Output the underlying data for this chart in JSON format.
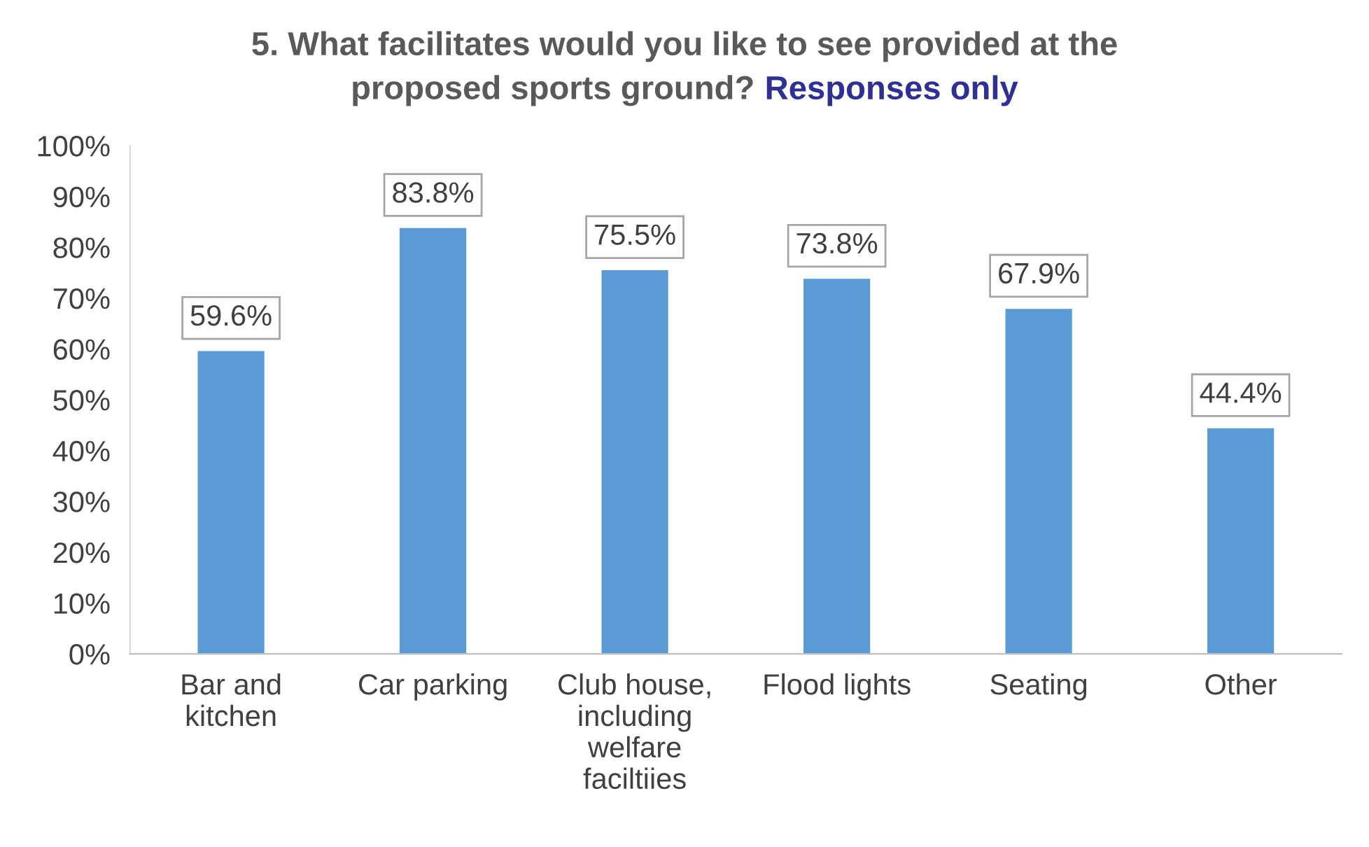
{
  "chart_data": {
    "type": "bar",
    "title": "5. What facilitates would you like to see provided at the proposed sports ground?",
    "subtitle": "Responses only",
    "categories": [
      "Bar and\nkitchen",
      "Car parking",
      "Club house,\nincluding\nwelfare\nfaciltiies",
      "Flood lights",
      "Seating",
      "Other"
    ],
    "values": [
      59.6,
      83.8,
      75.5,
      73.8,
      67.9,
      44.4
    ],
    "value_labels": [
      "59.6%",
      "83.8%",
      "75.5%",
      "73.8%",
      "67.9%",
      "44.4%"
    ],
    "color": "#5b9bd5",
    "ylim": [
      0,
      100
    ],
    "yticks": [
      {
        "value": 0,
        "label": "0%"
      },
      {
        "value": 10,
        "label": "10%"
      },
      {
        "value": 20,
        "label": "20%"
      },
      {
        "value": 30,
        "label": "30%"
      },
      {
        "value": 40,
        "label": "40%"
      },
      {
        "value": 50,
        "label": "50%"
      },
      {
        "value": 60,
        "label": "60%"
      },
      {
        "value": 70,
        "label": "70%"
      },
      {
        "value": 80,
        "label": "80%"
      },
      {
        "value": 90,
        "label": "90%"
      },
      {
        "value": 100,
        "label": "100%"
      }
    ],
    "grid": false,
    "legend": false
  }
}
